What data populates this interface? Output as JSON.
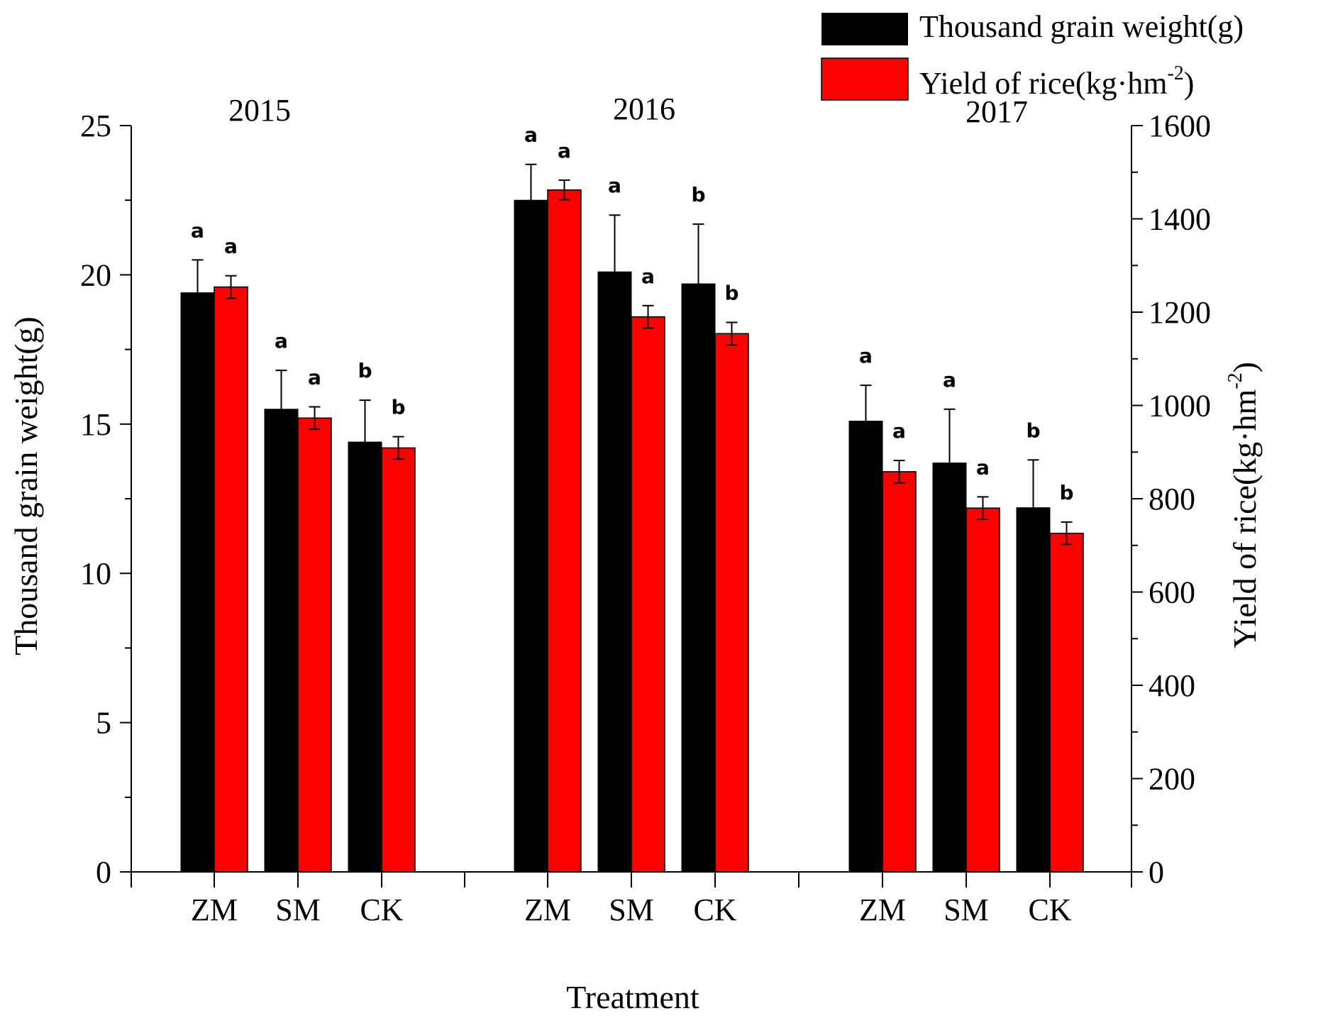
{
  "chart_data": {
    "type": "bar",
    "title": "",
    "xlabel": "Treatment",
    "ylabel": "Thousand grain weight(g)",
    "y2label": "Yield of rice(kg·hm",
    "y2label_sup": "-2",
    "y2label_end": ")",
    "ylim": [
      0,
      25
    ],
    "y2lim": [
      0,
      1600
    ],
    "yticks": [
      0,
      5,
      10,
      15,
      20,
      25
    ],
    "y2ticks": [
      0,
      200,
      400,
      600,
      800,
      1000,
      1200,
      1400,
      1600
    ],
    "legend_position": "top-right",
    "legend": {
      "items": [
        {
          "label": "Thousand grain weight(g)",
          "color": "#000000"
        },
        {
          "label_main": "Yield of rice(kg·hm",
          "label_sup": "-2",
          "label_end": ")",
          "color": "#ff0000"
        }
      ]
    },
    "groups": [
      {
        "year": "2015",
        "categories": [
          "ZM",
          "SM",
          "CK"
        ],
        "grain_weight": [
          19.4,
          15.5,
          14.4
        ],
        "grain_weight_err": [
          1.1,
          1.3,
          1.4
        ],
        "grain_weight_sig": [
          "a",
          "a",
          "b"
        ],
        "yield": [
          1254,
          973,
          909
        ],
        "yield_err": [
          24,
          24,
          24
        ],
        "yield_sig": [
          "a",
          "a",
          "b"
        ]
      },
      {
        "year": "2016",
        "categories": [
          "ZM",
          "SM",
          "CK"
        ],
        "grain_weight": [
          22.5,
          20.1,
          19.7
        ],
        "grain_weight_err": [
          1.2,
          1.9,
          2.0
        ],
        "grain_weight_sig": [
          "a",
          "a",
          "b"
        ],
        "yield": [
          1462,
          1190,
          1154
        ],
        "yield_err": [
          21,
          24,
          24
        ],
        "yield_sig": [
          "a",
          "a",
          "b"
        ]
      },
      {
        "year": "2017",
        "categories": [
          "ZM",
          "SM",
          "CK"
        ],
        "grain_weight": [
          15.1,
          13.7,
          12.2
        ],
        "grain_weight_err": [
          1.2,
          1.8,
          1.6
        ],
        "grain_weight_sig": [
          "a",
          "a",
          "b"
        ],
        "yield": [
          858,
          780,
          726
        ],
        "yield_err": [
          24,
          24,
          24
        ],
        "yield_sig": [
          "a",
          "a",
          "b"
        ]
      }
    ]
  }
}
